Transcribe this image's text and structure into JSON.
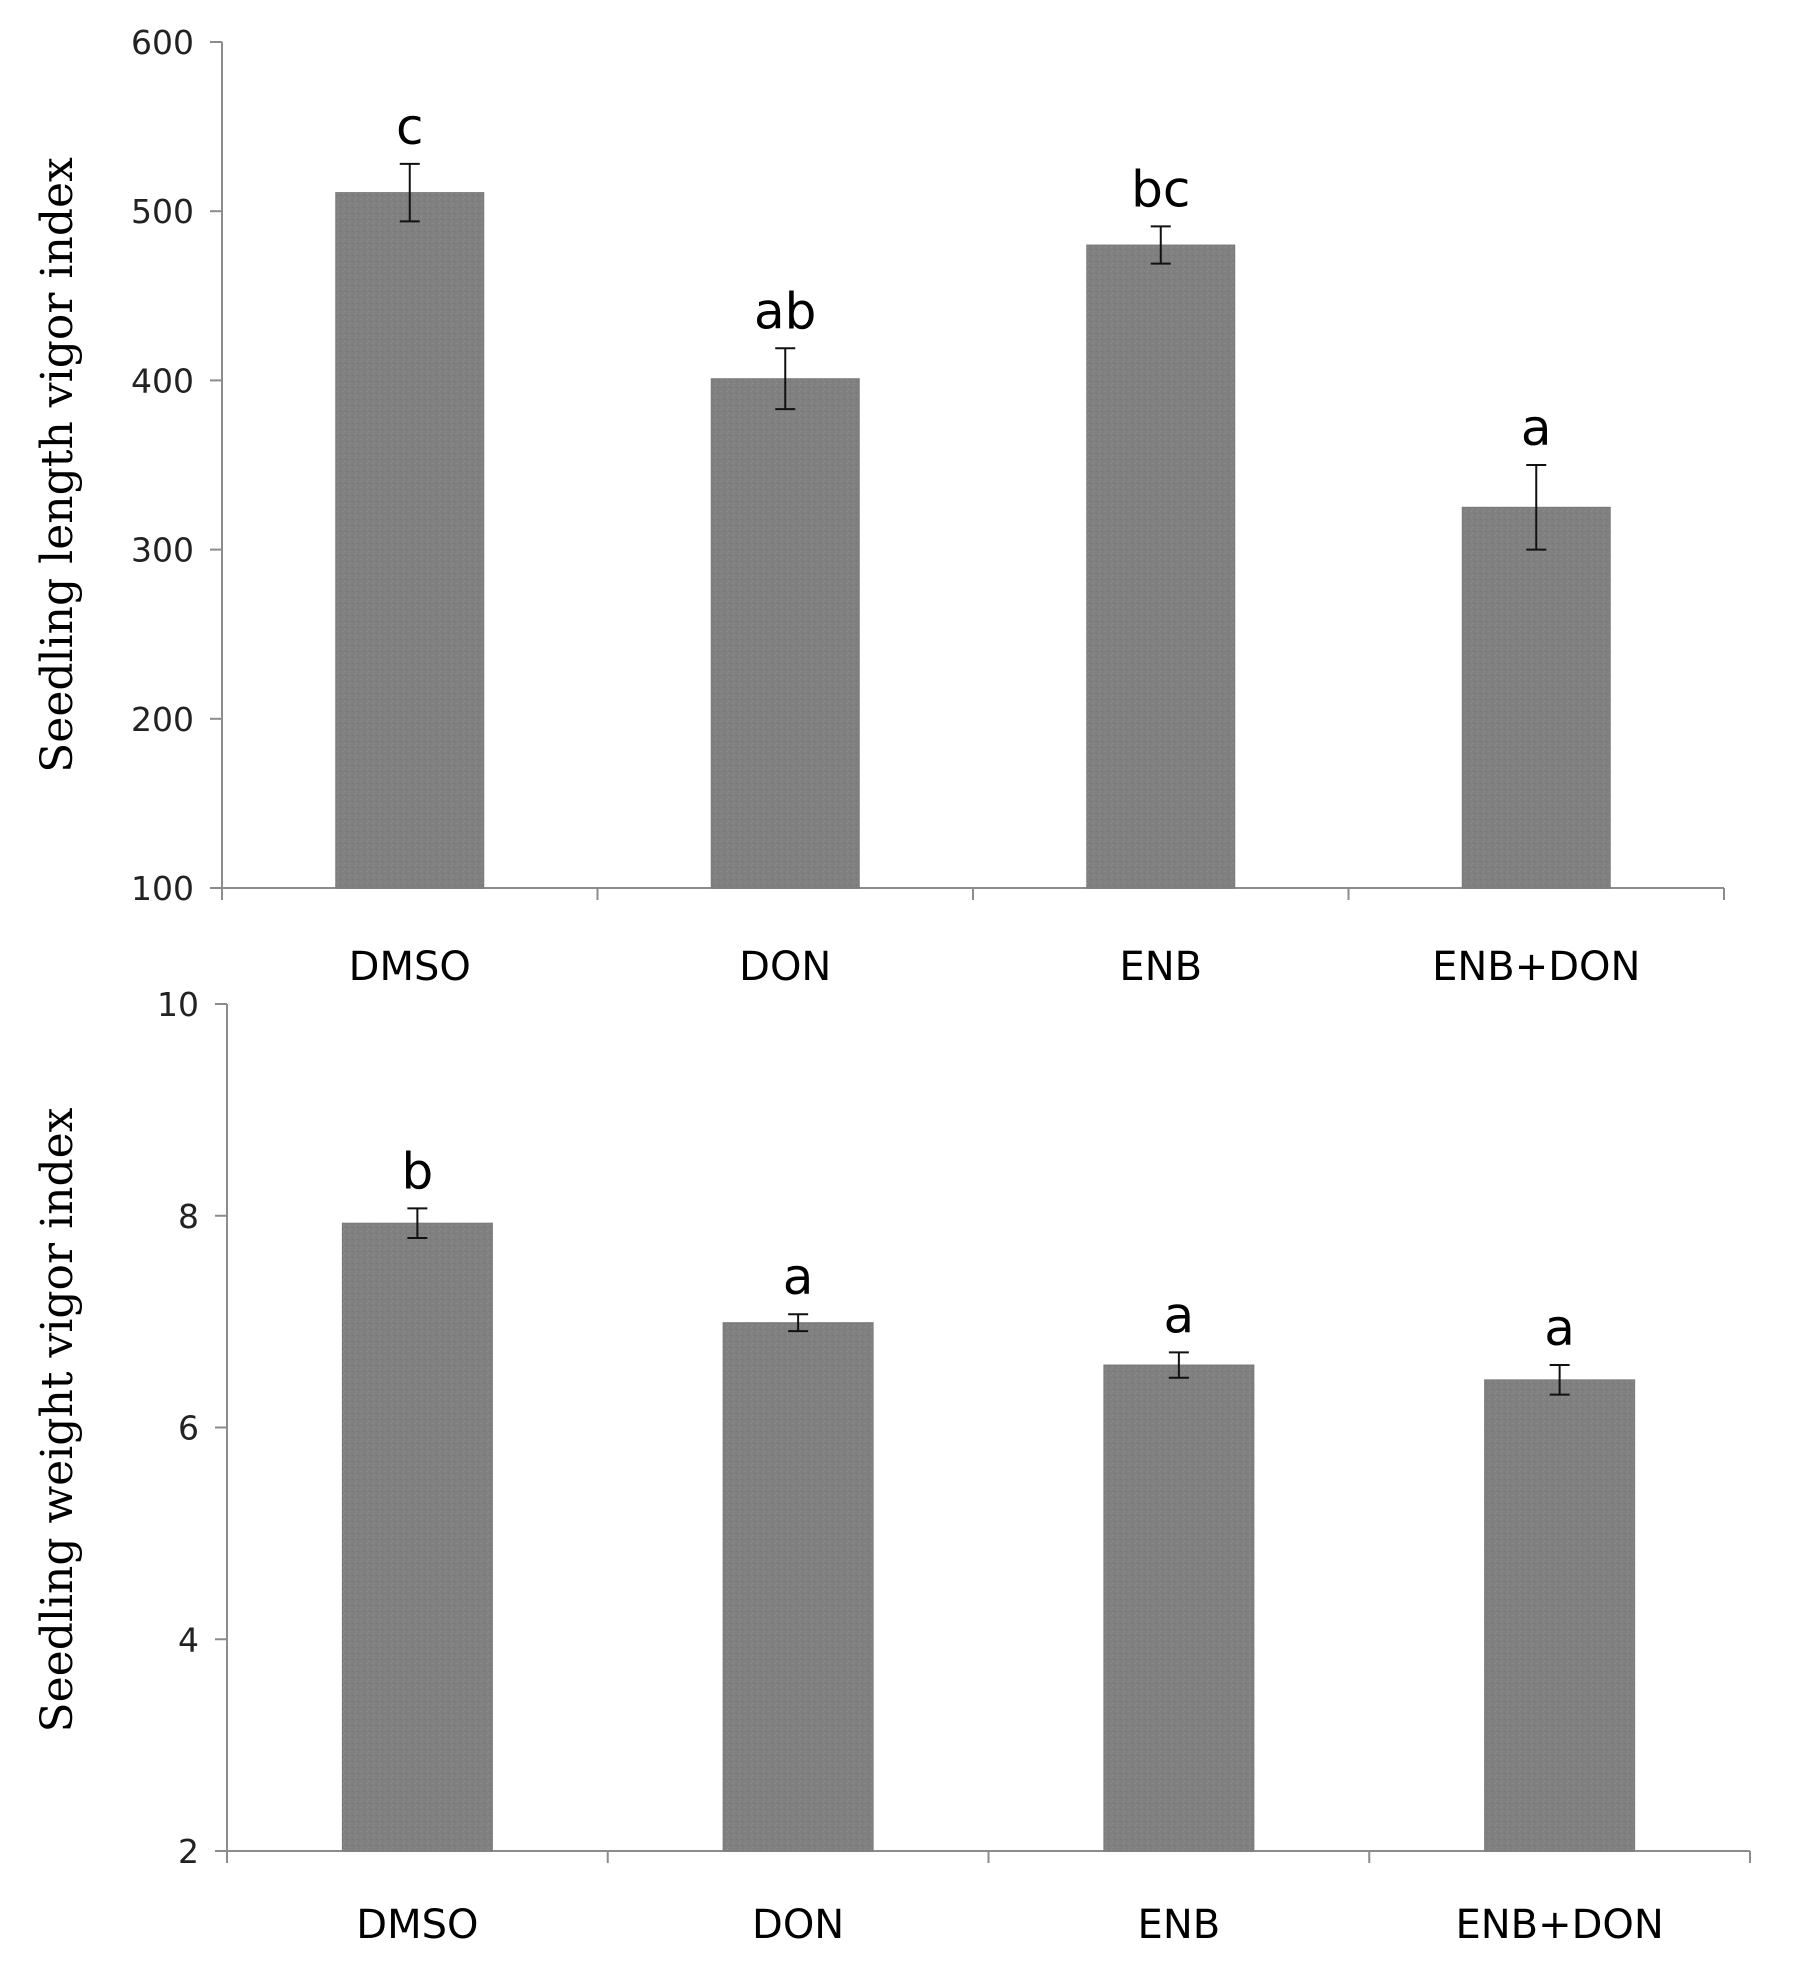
{
  "colors": {
    "bar": "#808080",
    "axis": "#8c8c8c",
    "error": "#111111"
  },
  "chart_data": [
    {
      "type": "bar",
      "ylabel": "Seedling length vigor index",
      "xlabel": "",
      "ylim": [
        100,
        600
      ],
      "yticks": [
        "100",
        "200",
        "300",
        "400",
        "500",
        "600"
      ],
      "categories": [
        "DMSO",
        "DON",
        "ENB",
        "ENB+DON"
      ],
      "values": [
        511,
        401,
        480,
        325
      ],
      "errors": [
        17,
        18,
        11,
        25
      ],
      "significance": [
        "c",
        "ab",
        "bc",
        "a"
      ],
      "legend": "none",
      "grid": false
    },
    {
      "type": "bar",
      "ylabel": "Seedling weight vigor index",
      "xlabel": "",
      "ylim": [
        2,
        10
      ],
      "yticks": [
        "2",
        "4",
        "6",
        "8",
        "10"
      ],
      "categories": [
        "DMSO",
        "DON",
        "ENB",
        "ENB+DON"
      ],
      "values": [
        7.93,
        6.99,
        6.59,
        6.45
      ],
      "errors": [
        0.14,
        0.08,
        0.12,
        0.14
      ],
      "significance": [
        "b",
        "a",
        "a",
        "a"
      ],
      "legend": "none",
      "grid": false
    }
  ]
}
